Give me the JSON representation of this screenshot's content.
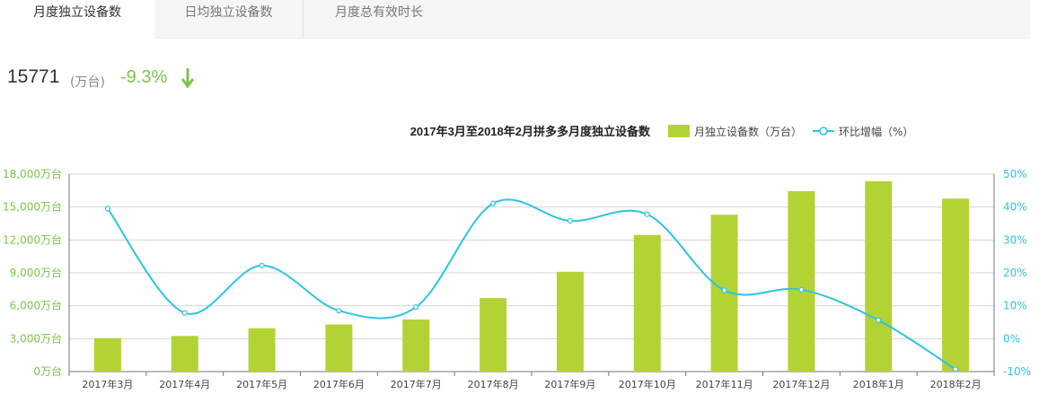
{
  "tabs": [
    {
      "label": "月度独立设备数",
      "active": true
    },
    {
      "label": "日均独立设备数",
      "active": false
    },
    {
      "label": "月度总有效时长",
      "active": false
    }
  ],
  "summary": {
    "value": "15771",
    "unit": "(万台)",
    "change": "-9.3%",
    "trend_icon": "arrow-down-icon",
    "trend_color": "#7cc44a"
  },
  "chart_data": {
    "type": "bar",
    "title": "2017年3月至2018年2月拼多多月度独立设备数",
    "categories": [
      "2017年3月",
      "2017年4月",
      "2017年5月",
      "2017年6月",
      "2017年7月",
      "2017年8月",
      "2017年9月",
      "2017年10月",
      "2017年11月",
      "2017年12月",
      "2018年1月",
      "2018年2月"
    ],
    "series": [
      {
        "name": "月独立设备数（万台）",
        "type": "bar",
        "axis": "left",
        "color": "#b3d335",
        "values": [
          3050,
          3250,
          3950,
          4300,
          4750,
          6700,
          9100,
          12450,
          14300,
          16450,
          17350,
          15771
        ]
      },
      {
        "name": "环比增幅（%）",
        "type": "line",
        "axis": "right",
        "color": "#2fc3e3",
        "values": [
          39.5,
          7.8,
          22.2,
          8.5,
          9.6,
          41.1,
          35.8,
          37.8,
          14.7,
          14.9,
          5.6,
          -9.3
        ]
      }
    ],
    "y_left": {
      "min": 0,
      "max": 18000,
      "ticks": [
        "0万台",
        "3,000万台",
        "6,000万台",
        "9,000万台",
        "12,000万台",
        "15,000万台",
        "18,000万台"
      ],
      "color": "#7cc44a"
    },
    "y_right": {
      "min": -10,
      "max": 50,
      "ticks": [
        "-10%",
        "0%",
        "10%",
        "20%",
        "30%",
        "40%",
        "50%"
      ],
      "color": "#2fc3e3"
    },
    "grid": true,
    "legend_position": "top-right"
  }
}
